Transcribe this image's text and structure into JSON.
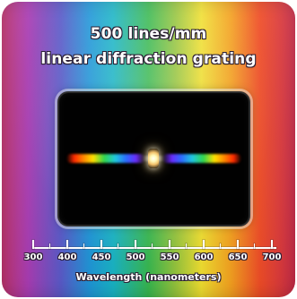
{
  "image": {
    "title_line_1": "500 lines/mm",
    "title_line_2": "linear diffraction grating",
    "footer_text": "Wavelength (nanometers)",
    "scale_labels": [
      "300",
      "400",
      "450",
      "500",
      "550",
      "600",
      "650",
      "700"
    ]
  },
  "colors": {
    "window": "#010101",
    "text": "#ffffff",
    "outline": "#2b1f33"
  }
}
